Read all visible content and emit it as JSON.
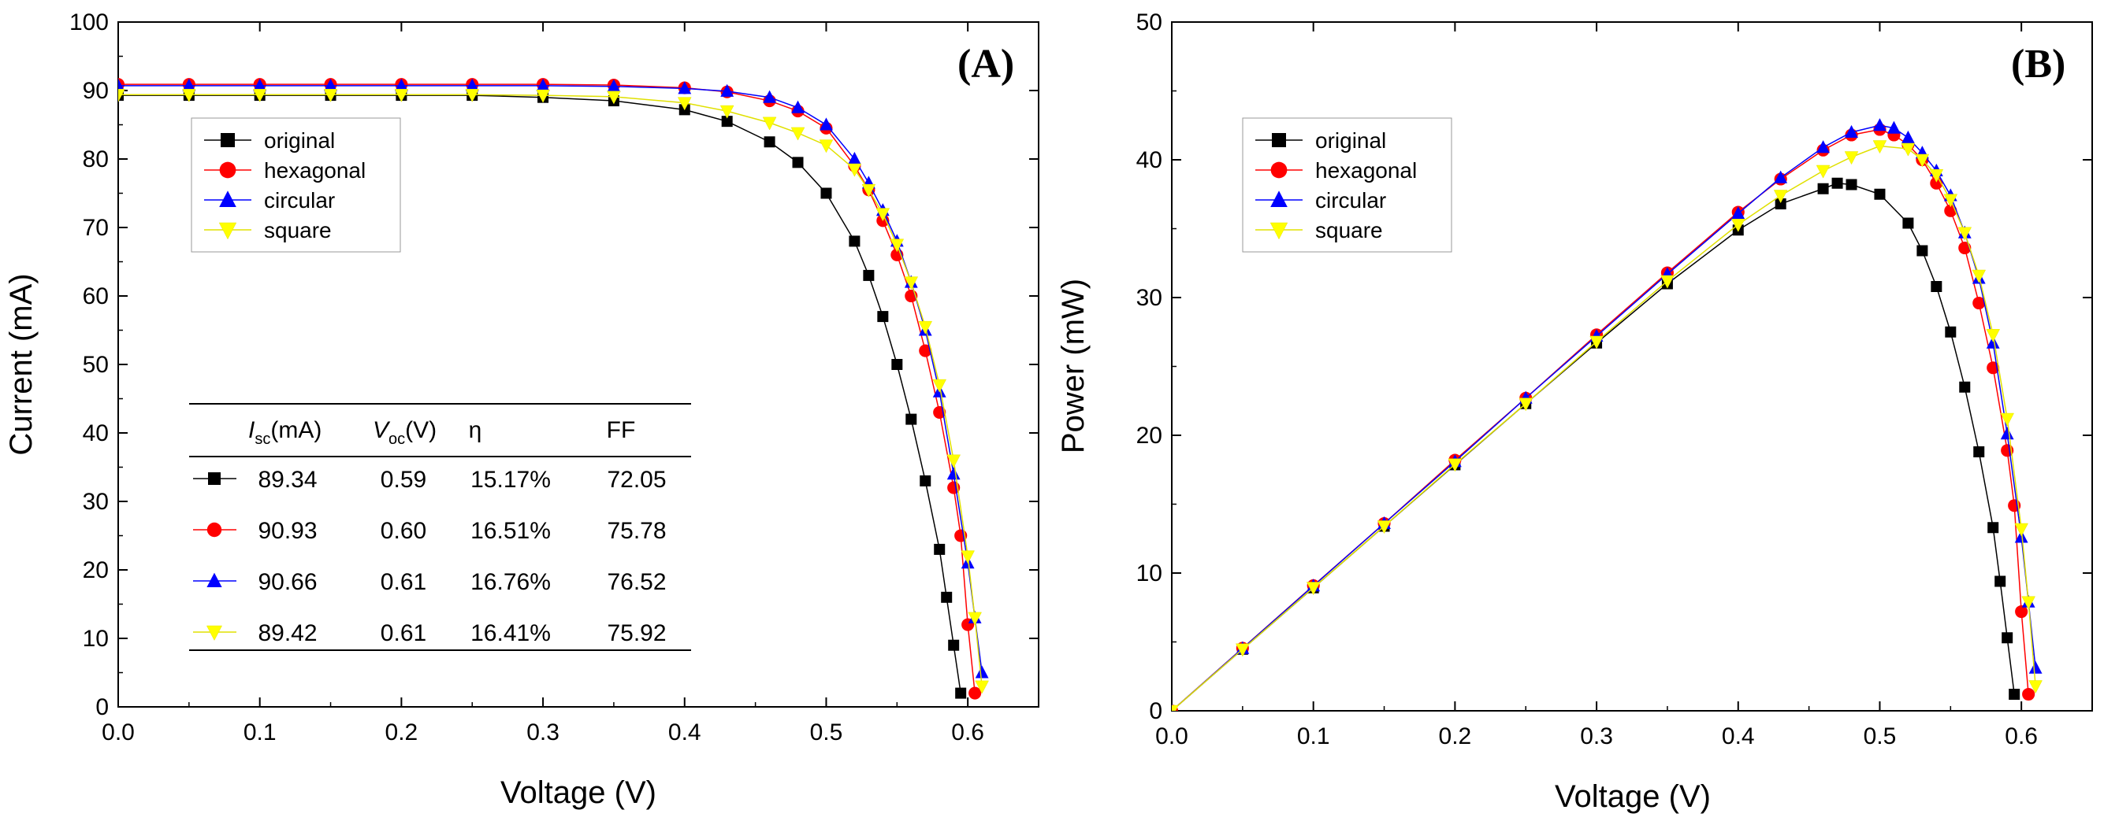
{
  "chart_data": [
    {
      "type": "line",
      "panel_label": "(A)",
      "xlabel": "Voltage (V)",
      "ylabel": "Current (mA)",
      "xlim": [
        0.0,
        0.65
      ],
      "ylim": [
        0,
        100
      ],
      "xticks": [
        "0.0",
        "0.1",
        "0.2",
        "0.3",
        "0.4",
        "0.5",
        "0.6"
      ],
      "yticks": [
        "0",
        "10",
        "20",
        "30",
        "40",
        "50",
        "60",
        "70",
        "80",
        "90",
        "100"
      ],
      "legend_position": "upper-left",
      "series": [
        {
          "name": "original",
          "color": "#000000",
          "marker": "square",
          "x": [
            0.0,
            0.05,
            0.1,
            0.15,
            0.2,
            0.25,
            0.3,
            0.35,
            0.4,
            0.43,
            0.46,
            0.48,
            0.5,
            0.52,
            0.53,
            0.54,
            0.55,
            0.56,
            0.57,
            0.58,
            0.585,
            0.59,
            0.595
          ],
          "y": [
            89.3,
            89.3,
            89.3,
            89.3,
            89.3,
            89.3,
            89.0,
            88.5,
            87.2,
            85.5,
            82.5,
            79.5,
            75.0,
            68.0,
            63.0,
            57.0,
            50.0,
            42.0,
            33.0,
            23.0,
            16.0,
            9.0,
            2.0
          ]
        },
        {
          "name": "hexagonal",
          "color": "#ff0000",
          "marker": "circle",
          "x": [
            0.0,
            0.05,
            0.1,
            0.15,
            0.2,
            0.25,
            0.3,
            0.35,
            0.4,
            0.43,
            0.46,
            0.48,
            0.5,
            0.52,
            0.53,
            0.54,
            0.55,
            0.56,
            0.57,
            0.58,
            0.59,
            0.595,
            0.6,
            0.605
          ],
          "y": [
            90.9,
            90.9,
            90.9,
            90.9,
            90.9,
            90.9,
            90.9,
            90.8,
            90.4,
            89.8,
            88.5,
            87.0,
            84.5,
            79.0,
            75.5,
            71.0,
            66.0,
            60.0,
            52.0,
            43.0,
            32.0,
            25.0,
            12.0,
            2.0
          ]
        },
        {
          "name": "circular",
          "color": "#0000ff",
          "marker": "triangle-up",
          "x": [
            0.0,
            0.05,
            0.1,
            0.15,
            0.2,
            0.25,
            0.3,
            0.35,
            0.4,
            0.43,
            0.46,
            0.48,
            0.5,
            0.52,
            0.53,
            0.54,
            0.55,
            0.56,
            0.57,
            0.58,
            0.59,
            0.6,
            0.605,
            0.61
          ],
          "y": [
            90.7,
            90.7,
            90.7,
            90.7,
            90.7,
            90.7,
            90.7,
            90.6,
            90.3,
            89.9,
            89.0,
            87.5,
            85.0,
            80.0,
            76.5,
            72.5,
            68.0,
            62.0,
            55.0,
            46.0,
            34.0,
            21.0,
            13.0,
            5.0
          ]
        },
        {
          "name": "square",
          "color": "#ffff00",
          "marker": "triangle-down",
          "x": [
            0.0,
            0.05,
            0.1,
            0.15,
            0.2,
            0.25,
            0.3,
            0.35,
            0.4,
            0.43,
            0.46,
            0.48,
            0.5,
            0.52,
            0.53,
            0.54,
            0.55,
            0.56,
            0.57,
            0.58,
            0.59,
            0.6,
            0.605,
            0.61
          ],
          "y": [
            89.4,
            89.4,
            89.4,
            89.4,
            89.4,
            89.4,
            89.3,
            89.1,
            88.2,
            87.0,
            85.3,
            83.8,
            82.0,
            78.5,
            75.5,
            72.0,
            67.5,
            62.0,
            55.5,
            47.0,
            36.0,
            22.0,
            13.0,
            3.0
          ]
        }
      ],
      "table": {
        "headers": {
          "isc_main": "I",
          "isc_sub": "sc",
          "isc_unit": "(mA)",
          "voc_main": "V",
          "voc_sub": "oc",
          "voc_unit": "(V)",
          "eta": "η",
          "ff": "FF"
        },
        "rows": [
          {
            "isc": "89.34",
            "voc": "0.59",
            "eta": "15.17%",
            "ff": "72.05"
          },
          {
            "isc": "90.93",
            "voc": "0.60",
            "eta": "16.51%",
            "ff": "75.78"
          },
          {
            "isc": "90.66",
            "voc": "0.61",
            "eta": "16.76%",
            "ff": "76.52"
          },
          {
            "isc": "89.42",
            "voc": "0.61",
            "eta": "16.41%",
            "ff": "75.92"
          }
        ]
      }
    },
    {
      "type": "line",
      "panel_label": "(B)",
      "xlabel": "Voltage (V)",
      "ylabel": "Power (mW)",
      "xlim": [
        0.0,
        0.65
      ],
      "ylim": [
        0,
        50
      ],
      "xticks": [
        "0.0",
        "0.1",
        "0.2",
        "0.3",
        "0.4",
        "0.5",
        "0.6"
      ],
      "yticks": [
        "0",
        "10",
        "20",
        "30",
        "40",
        "50"
      ],
      "legend_position": "upper-left",
      "series": [
        {
          "name": "original",
          "color": "#000000",
          "marker": "square",
          "x": [
            0.0,
            0.05,
            0.1,
            0.15,
            0.2,
            0.25,
            0.3,
            0.35,
            0.4,
            0.43,
            0.46,
            0.47,
            0.48,
            0.5,
            0.52,
            0.53,
            0.54,
            0.55,
            0.56,
            0.57,
            0.58,
            0.585,
            0.59,
            0.595
          ],
          "y": [
            0,
            4.47,
            8.93,
            13.4,
            17.86,
            22.3,
            26.7,
            31.0,
            34.9,
            36.8,
            37.9,
            38.3,
            38.2,
            37.5,
            35.4,
            33.4,
            30.8,
            27.5,
            23.5,
            18.8,
            13.3,
            9.4,
            5.3,
            1.2
          ]
        },
        {
          "name": "hexagonal",
          "color": "#ff0000",
          "marker": "circle",
          "x": [
            0.0,
            0.05,
            0.1,
            0.15,
            0.2,
            0.25,
            0.3,
            0.35,
            0.4,
            0.43,
            0.46,
            0.48,
            0.5,
            0.51,
            0.52,
            0.53,
            0.54,
            0.55,
            0.56,
            0.57,
            0.58,
            0.59,
            0.595,
            0.6,
            0.605
          ],
          "y": [
            0,
            4.55,
            9.09,
            13.6,
            18.2,
            22.7,
            27.3,
            31.8,
            36.2,
            38.6,
            40.7,
            41.8,
            42.2,
            41.8,
            41.1,
            40.0,
            38.3,
            36.3,
            33.6,
            29.6,
            24.9,
            18.9,
            14.9,
            7.2,
            1.2
          ]
        },
        {
          "name": "circular",
          "color": "#0000ff",
          "marker": "triangle-up",
          "x": [
            0.0,
            0.05,
            0.1,
            0.15,
            0.2,
            0.25,
            0.3,
            0.35,
            0.4,
            0.43,
            0.46,
            0.48,
            0.5,
            0.51,
            0.52,
            0.53,
            0.54,
            0.55,
            0.56,
            0.57,
            0.58,
            0.59,
            0.6,
            0.605,
            0.61
          ],
          "y": [
            0,
            4.53,
            9.07,
            13.6,
            18.1,
            22.7,
            27.2,
            31.7,
            36.1,
            38.7,
            40.9,
            42.0,
            42.5,
            42.3,
            41.6,
            40.5,
            39.2,
            37.4,
            34.7,
            31.4,
            26.7,
            20.1,
            12.6,
            7.9,
            3.1
          ]
        },
        {
          "name": "square",
          "color": "#ffff00",
          "marker": "triangle-down",
          "x": [
            0.0,
            0.05,
            0.1,
            0.15,
            0.2,
            0.25,
            0.3,
            0.35,
            0.4,
            0.43,
            0.46,
            0.48,
            0.5,
            0.52,
            0.53,
            0.54,
            0.55,
            0.56,
            0.57,
            0.58,
            0.59,
            0.6,
            0.605,
            0.61
          ],
          "y": [
            0,
            4.47,
            8.94,
            13.4,
            17.9,
            22.3,
            26.8,
            31.2,
            35.3,
            37.4,
            39.2,
            40.2,
            41.0,
            40.8,
            40.0,
            38.9,
            37.1,
            34.7,
            31.6,
            27.3,
            21.2,
            13.2,
            7.9,
            1.8
          ]
        }
      ]
    }
  ]
}
